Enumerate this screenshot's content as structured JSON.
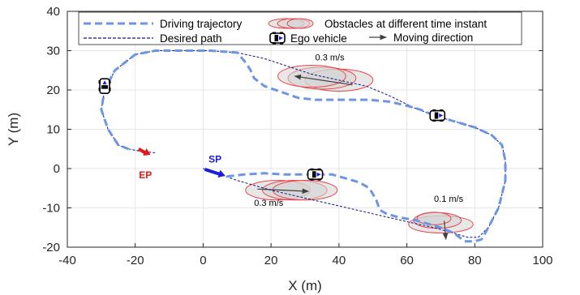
{
  "chart_data": {
    "type": "line",
    "title": "",
    "xlabel": "X (m)",
    "ylabel": "Y (m)",
    "xlim": [
      -40,
      100
    ],
    "ylim": [
      -20,
      40
    ],
    "xticks": [
      -40,
      -20,
      0,
      20,
      40,
      60,
      80,
      100
    ],
    "yticks": [
      -20,
      -10,
      0,
      10,
      20,
      30,
      40
    ],
    "grid": true,
    "legend_placement": "top",
    "legend": [
      {
        "key": "driving",
        "label": "Driving trajectory"
      },
      {
        "key": "desired",
        "label": "Desired path"
      },
      {
        "key": "obstacles",
        "label": "Obstacles at different time instant"
      },
      {
        "key": "ego",
        "label": "Ego vehicle"
      },
      {
        "key": "direction",
        "label": "Moving direction"
      }
    ],
    "colors": {
      "driving": "#6b96e6",
      "desired": "#10108a",
      "obstacle_fill": "#d4d4d4",
      "obstacle_edge": "#e8454a",
      "start_marker": "#1a1ae0",
      "end_marker": "#e01a1a",
      "arrow": "#404040"
    },
    "series": [
      {
        "key": "desired",
        "name": "Desired path",
        "points": [
          [
            0,
            0
          ],
          [
            10,
            -3
          ],
          [
            20,
            -5.5
          ],
          [
            30,
            -7.5
          ],
          [
            40,
            -9.5
          ],
          [
            50,
            -11.5
          ],
          [
            60,
            -13.5
          ],
          [
            68,
            -15
          ],
          [
            74,
            -16.5
          ],
          [
            78,
            -17.5
          ],
          [
            81,
            -17.5
          ],
          [
            84,
            -15
          ],
          [
            87,
            -10
          ],
          [
            89,
            -3
          ],
          [
            89,
            2
          ],
          [
            88,
            6
          ],
          [
            85,
            8.5
          ],
          [
            80,
            10.5
          ],
          [
            74,
            12
          ],
          [
            68,
            13.5
          ],
          [
            62,
            15.5
          ],
          [
            55,
            18.5
          ],
          [
            48,
            21
          ],
          [
            40,
            22.5
          ],
          [
            32,
            24
          ],
          [
            25,
            26
          ],
          [
            18,
            28
          ],
          [
            10,
            29.5
          ],
          [
            2,
            30
          ],
          [
            -6,
            30
          ],
          [
            -14,
            30
          ],
          [
            -20,
            29
          ],
          [
            -26,
            25
          ],
          [
            -29,
            20
          ],
          [
            -30,
            15
          ],
          [
            -28,
            10
          ],
          [
            -25,
            6
          ],
          [
            -22,
            5
          ],
          [
            -19,
            4.5
          ],
          [
            -14,
            4
          ]
        ]
      },
      {
        "key": "driving",
        "name": "Driving trajectory",
        "points": [
          [
            7,
            -2
          ],
          [
            12,
            -1.5
          ],
          [
            18,
            -1.2
          ],
          [
            24,
            -1.5
          ],
          [
            28,
            -1.5
          ],
          [
            33,
            -1.5
          ],
          [
            38,
            -1.5
          ],
          [
            42,
            -2.5
          ],
          [
            46,
            -3.5
          ],
          [
            49,
            -5
          ],
          [
            51,
            -8
          ],
          [
            52,
            -10.5
          ],
          [
            54,
            -11.5
          ],
          [
            58,
            -12.5
          ],
          [
            62,
            -13
          ],
          [
            66,
            -14
          ],
          [
            70,
            -15
          ],
          [
            74,
            -16.5
          ],
          [
            77,
            -18.5
          ],
          [
            80,
            -18.5
          ],
          [
            82,
            -18
          ],
          [
            84,
            -15
          ],
          [
            87,
            -10
          ],
          [
            89,
            -3
          ],
          [
            89,
            2
          ],
          [
            88,
            6
          ],
          [
            85,
            8.5
          ],
          [
            80,
            10.5
          ],
          [
            74,
            12
          ],
          [
            68,
            13.5
          ],
          [
            64,
            15
          ],
          [
            60,
            16
          ],
          [
            55,
            17
          ],
          [
            49,
            17.5
          ],
          [
            43,
            17.5
          ],
          [
            38,
            17.5
          ],
          [
            33,
            17.5
          ],
          [
            28,
            18
          ],
          [
            23,
            19.5
          ],
          [
            18,
            21
          ],
          [
            15,
            23
          ],
          [
            14,
            25
          ],
          [
            12.5,
            27
          ],
          [
            10,
            29.5
          ],
          [
            2,
            30
          ],
          [
            -6,
            30
          ],
          [
            -14,
            30
          ],
          [
            -20,
            29
          ],
          [
            -26,
            25
          ],
          [
            -29,
            20
          ],
          [
            -30,
            15
          ],
          [
            -28,
            10
          ],
          [
            -25,
            6
          ],
          [
            -22,
            5
          ]
        ]
      }
    ],
    "obstacles": [
      {
        "ellipses": [
          {
            "cx": 22,
            "cy": -5.5,
            "rx": 9.5,
            "ry": 2.5
          },
          {
            "cx": 27,
            "cy": -5.5,
            "rx": 9.5,
            "ry": 2.5
          },
          {
            "cx": 30,
            "cy": -5.5,
            "rx": 9.5,
            "ry": 2.5
          }
        ],
        "arrow": {
          "from": [
            16,
            -5.2
          ],
          "to": [
            31,
            -5.8
          ]
        },
        "speed_label": "0.3 m/s",
        "label_at": [
          15,
          -9.5
        ]
      },
      {
        "ellipses": [
          {
            "cx": 40,
            "cy": 22.5,
            "rx": 10,
            "ry": 2.8
          },
          {
            "cx": 35,
            "cy": 23,
            "rx": 10,
            "ry": 2.8
          },
          {
            "cx": 32,
            "cy": 23.5,
            "rx": 10,
            "ry": 2.8
          }
        ],
        "arrow": {
          "from": [
            44,
            21.3
          ],
          "to": [
            27,
            23.5
          ]
        },
        "speed_label": "0.3 m/s",
        "label_at": [
          33,
          27.5
        ]
      },
      {
        "ellipses": [
          {
            "cx": 70,
            "cy": -14.2,
            "rx": 9.5,
            "ry": 2.2
          },
          {
            "cx": 69,
            "cy": -13.2,
            "rx": 7,
            "ry": 2
          },
          {
            "cx": 68,
            "cy": -12.7,
            "rx": 5,
            "ry": 1.6
          }
        ],
        "arrow": {
          "from": [
            71,
            -13.3
          ],
          "to": [
            71.5,
            -18
          ]
        },
        "speed_label": "0.1 m/s",
        "label_at": [
          68,
          -8.5
        ]
      }
    ],
    "ego_vehicles": [
      {
        "x": 33,
        "y": -1.5,
        "angle": 0
      },
      {
        "x": 69,
        "y": 13.5,
        "angle": 0
      },
      {
        "x": -29,
        "y": 21,
        "angle": -90
      }
    ],
    "markers": [
      {
        "key": "start",
        "label": "SP",
        "tail": [
          0.5,
          -0.2
        ],
        "head": [
          6.5,
          -1.8
        ],
        "label_at": [
          3.5,
          1.5
        ]
      },
      {
        "key": "end",
        "label": "EP",
        "tail": [
          -19,
          5
        ],
        "head": [
          -15.5,
          3.5
        ],
        "label_at": [
          -17,
          -2.5
        ]
      }
    ]
  }
}
